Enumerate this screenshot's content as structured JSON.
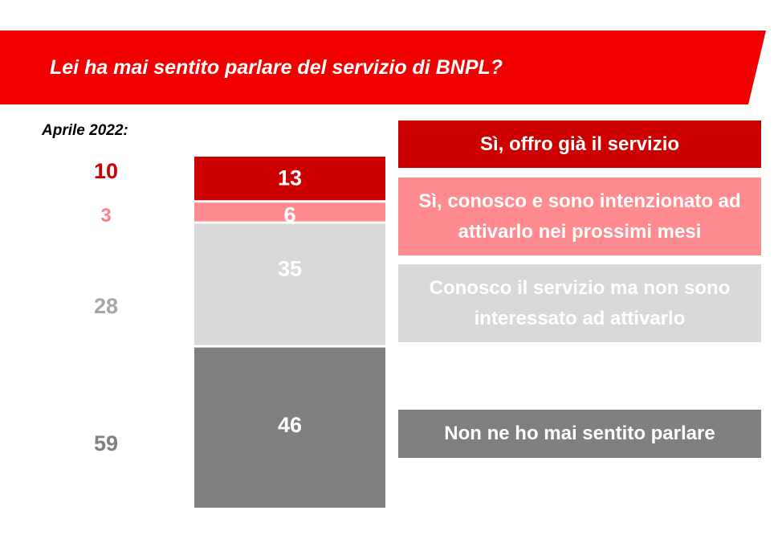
{
  "colors": {
    "banner": "#f00000",
    "seg_offro": "#cc0000",
    "seg_intenzionato": "#ff8a8f",
    "seg_non_interessato": "#d9d9d9",
    "seg_mai": "#808080",
    "prev_offro": "#cc0000",
    "prev_intenzionato": "#ff7f86",
    "prev_grey": "#a6a6a6"
  },
  "header": {
    "title": "Lei ha mai sentito parlare del servizio di BNPL?"
  },
  "comparison": {
    "label": "Aprile 2022:",
    "values": [
      "10",
      "3",
      "28",
      "59"
    ]
  },
  "legend": [
    "Sì, offro già il servizio",
    "Sì, conosco e sono intenzionato ad attivarlo nei prossimi mesi",
    "Conosco il servizio ma non sono interessato ad attivarlo",
    "Non ne ho mai sentito parlare"
  ],
  "chart_data": {
    "type": "bar",
    "stacked": true,
    "categories": [
      ""
    ],
    "series": [
      {
        "name": "Sì, offro già il servizio",
        "values": [
          13
        ]
      },
      {
        "name": "Sì, conosco e sono intenzionato ad attivarlo nei prossimi mesi",
        "values": [
          6
        ]
      },
      {
        "name": "Conosco il servizio ma non sono interessato ad attivarlo",
        "values": [
          35
        ]
      },
      {
        "name": "Non ne ho mai sentito parlare",
        "values": [
          46
        ]
      }
    ],
    "comparison_series": [
      {
        "name": "Aprile 2022",
        "values": [
          10,
          3,
          28,
          59
        ]
      }
    ],
    "data_labels": [
      "13",
      "6",
      "35",
      "46"
    ],
    "title": "Lei ha mai sentito parlare del servizio di BNPL?",
    "xlabel": "",
    "ylabel": "",
    "ylim": [
      0,
      100
    ],
    "grid": false
  }
}
